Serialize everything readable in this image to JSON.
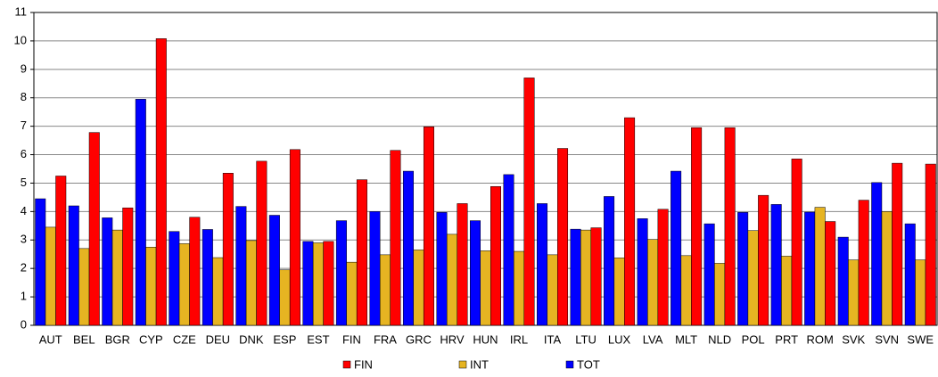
{
  "chart_data": {
    "type": "bar",
    "categories": [
      "AUT",
      "BEL",
      "BGR",
      "CYP",
      "CZE",
      "DEU",
      "DNK",
      "ESP",
      "EST",
      "FIN",
      "FRA",
      "GRC",
      "HRV",
      "HUN",
      "IRL",
      "ITA",
      "LTU",
      "LUX",
      "LVA",
      "MLT",
      "NLD",
      "POL",
      "PRT",
      "ROM",
      "SVK",
      "SVN",
      "SWE"
    ],
    "series": [
      {
        "name": "TOT",
        "color": "#0000ff",
        "values": [
          4.45,
          4.2,
          3.78,
          7.95,
          3.3,
          3.37,
          4.18,
          3.87,
          2.95,
          3.68,
          4.0,
          5.42,
          3.97,
          3.68,
          5.3,
          4.28,
          3.38,
          4.53,
          3.75,
          5.42,
          3.57,
          3.97,
          4.25,
          3.98,
          3.1,
          5.02,
          3.57
        ]
      },
      {
        "name": "INT",
        "color": "#e6b422",
        "values": [
          3.45,
          2.7,
          3.35,
          2.75,
          2.87,
          2.38,
          2.98,
          1.95,
          2.9,
          2.22,
          2.48,
          2.65,
          3.2,
          2.62,
          2.6,
          2.48,
          3.35,
          2.37,
          3.02,
          2.45,
          2.18,
          3.33,
          2.43,
          4.15,
          2.3,
          4.0,
          2.3
        ]
      },
      {
        "name": "FIN",
        "color": "#ff0000",
        "values": [
          5.25,
          6.78,
          4.13,
          10.08,
          3.8,
          5.35,
          5.77,
          6.18,
          2.95,
          5.12,
          6.15,
          6.98,
          4.28,
          4.88,
          8.7,
          6.22,
          3.43,
          7.3,
          4.08,
          6.95,
          6.95,
          4.57,
          5.85,
          3.65,
          4.4,
          5.7,
          5.67
        ]
      }
    ],
    "ylim": [
      0,
      11
    ],
    "yticks": [
      0,
      1,
      2,
      3,
      4,
      5,
      6,
      7,
      8,
      9,
      10,
      11
    ],
    "grid": true
  }
}
